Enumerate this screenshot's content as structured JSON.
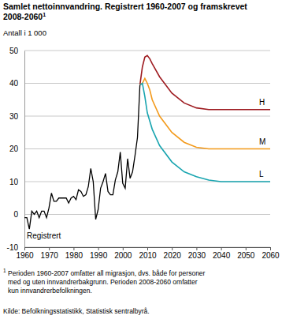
{
  "chart_data": {
    "type": "line",
    "title": [
      "Samlet nettoinnvandring. Registrert 1960-2007 og framskrevet",
      "2008-2060"
    ],
    "footnote_marker": "1",
    "subtitle": "Antall i 1 000",
    "footnote_lines": [
      "Perioden 1960-2007 omfatter all migrasjon, dvs. både for personer",
      "med og uten innvandrerbakgrunn. Perioden 2008-2060 omfatter",
      "kun innvandrerbefolkningen."
    ],
    "source": "Kilde: Befolkningsstatistikk, Statistisk sentralbyrå.",
    "xlim": [
      1960,
      2060
    ],
    "xticks": [
      1960,
      1970,
      1980,
      1990,
      2000,
      2010,
      2020,
      2030,
      2040,
      2050,
      2060
    ],
    "ylim": [
      -10,
      50
    ],
    "yticks": [
      -10,
      0,
      10,
      20,
      30,
      40,
      50
    ],
    "grid": true,
    "series": [
      {
        "name": "Registrert",
        "color": "#000000",
        "x": [
          1960,
          1961,
          1962,
          1963,
          1964,
          1965,
          1966,
          1967,
          1968,
          1969,
          1970,
          1971,
          1972,
          1973,
          1974,
          1975,
          1976,
          1977,
          1978,
          1979,
          1980,
          1981,
          1982,
          1983,
          1984,
          1985,
          1986,
          1987,
          1988,
          1989,
          1990,
          1991,
          1992,
          1993,
          1994,
          1995,
          1996,
          1997,
          1998,
          1999,
          2000,
          2001,
          2002,
          2003,
          2004,
          2005,
          2006,
          2007
        ],
        "values": [
          -1,
          -1,
          -4.5,
          1,
          0,
          1,
          -1,
          1,
          1,
          -1,
          2,
          6.5,
          4,
          4,
          5,
          5,
          5,
          5,
          3.5,
          5,
          5.5,
          4.5,
          7.5,
          7,
          5.5,
          6,
          8.5,
          14,
          10,
          -1.5,
          1.5,
          8,
          10,
          12.5,
          7,
          6,
          6,
          10.5,
          13,
          19,
          9.5,
          8,
          17,
          11,
          13,
          18,
          23.5,
          39.5
        ]
      },
      {
        "name": "H",
        "color": "#9e1b20",
        "x": [
          2007,
          2008,
          2009,
          2010,
          2011,
          2012,
          2015,
          2020,
          2025,
          2030,
          2035,
          2040,
          2050,
          2060
        ],
        "values": [
          39.5,
          45,
          48,
          48.5,
          47.5,
          46,
          42,
          37,
          34,
          32.5,
          32,
          32,
          32,
          32
        ]
      },
      {
        "name": "M",
        "color": "#f39a1b",
        "x": [
          2007,
          2008,
          2009,
          2010,
          2011,
          2012,
          2015,
          2020,
          2025,
          2030,
          2035,
          2040,
          2050,
          2060
        ],
        "values": [
          39.5,
          40,
          41.5,
          40,
          38,
          35,
          30,
          25,
          22,
          20.5,
          20,
          20,
          20,
          20
        ]
      },
      {
        "name": "L",
        "color": "#19a5b0",
        "x": [
          2007,
          2008,
          2009,
          2010,
          2012,
          2015,
          2020,
          2025,
          2030,
          2035,
          2040,
          2050,
          2060
        ],
        "values": [
          39.5,
          40,
          36,
          31,
          26,
          21,
          16,
          13,
          11.5,
          10.5,
          10,
          10,
          10
        ]
      }
    ]
  }
}
